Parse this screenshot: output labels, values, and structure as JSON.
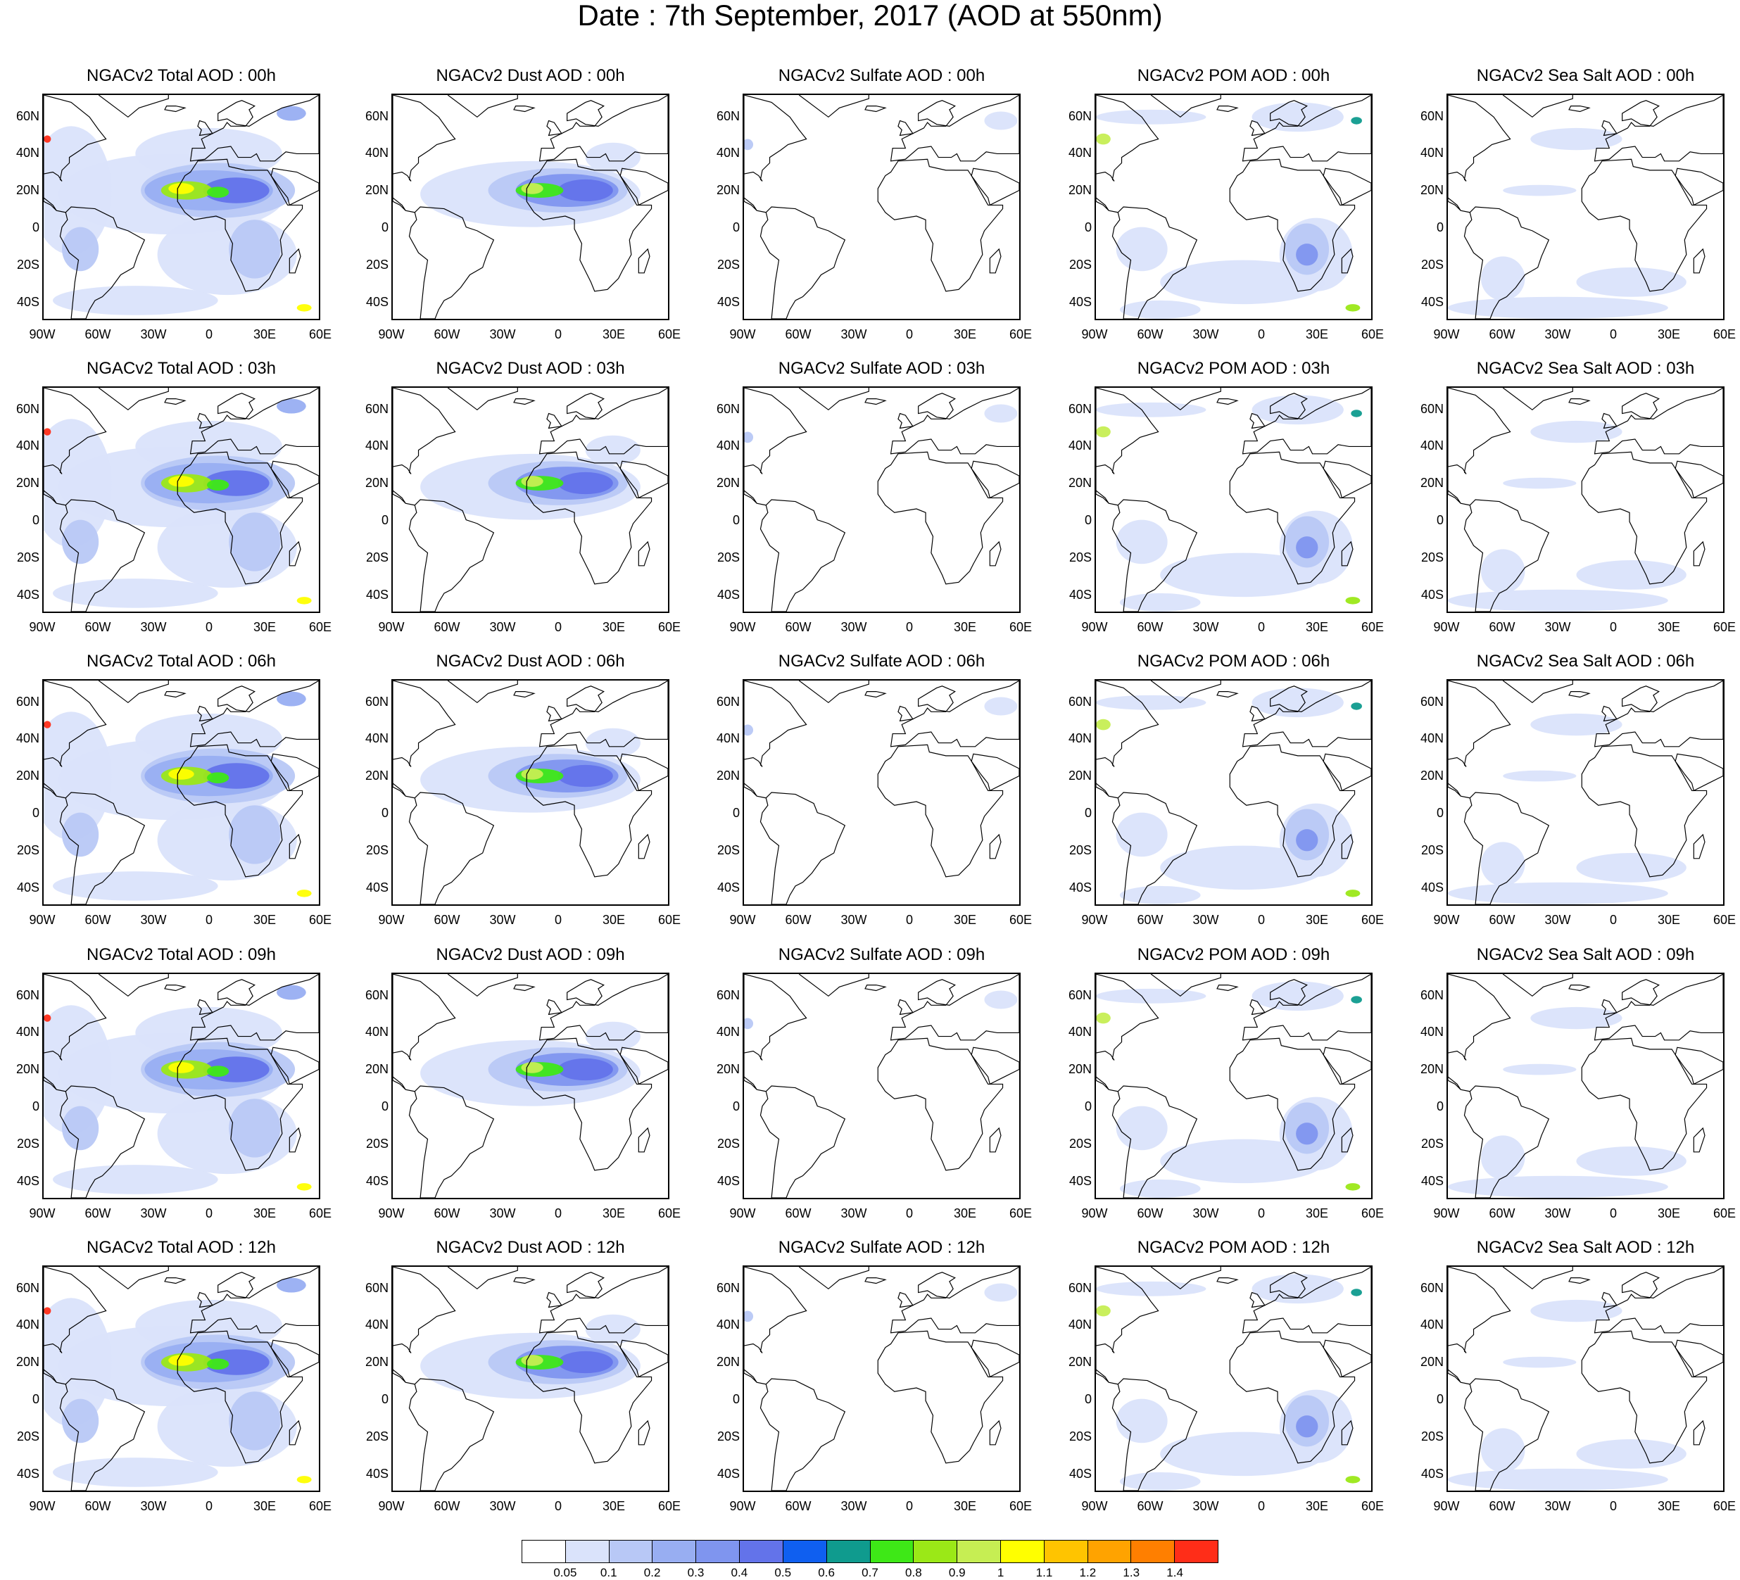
{
  "title": "Date : 7th September, 2017 (AOD at 550nm)",
  "lat_labels": [
    "60N",
    "40N",
    "20N",
    "0",
    "20S",
    "40S"
  ],
  "lat_values": [
    60,
    40,
    20,
    0,
    -20,
    -40
  ],
  "lon_labels": [
    "90W",
    "60W",
    "30W",
    "0",
    "30E",
    "60E"
  ],
  "lon_values": [
    -90,
    -60,
    -30,
    0,
    30,
    60
  ],
  "map_extent": {
    "lon": [
      -90,
      60
    ],
    "lat": [
      -50,
      72
    ]
  },
  "panels": [
    [
      "NGACv2 Total AOD : 00h",
      "NGACv2 Dust AOD : 00h",
      "NGACv2 Sulfate AOD : 00h",
      "NGACv2 POM AOD : 00h",
      "NGACv2 Sea Salt AOD : 00h"
    ],
    [
      "NGACv2 Total AOD : 03h",
      "NGACv2 Dust AOD : 03h",
      "NGACv2 Sulfate AOD : 03h",
      "NGACv2 POM AOD : 03h",
      "NGACv2 Sea Salt AOD : 03h"
    ],
    [
      "NGACv2 Total AOD : 06h",
      "NGACv2 Dust AOD : 06h",
      "NGACv2 Sulfate AOD : 06h",
      "NGACv2 POM AOD : 06h",
      "NGACv2 Sea Salt AOD : 06h"
    ],
    [
      "NGACv2 Total AOD : 09h",
      "NGACv2 Dust AOD : 09h",
      "NGACv2 Sulfate AOD : 09h",
      "NGACv2 POM AOD : 09h",
      "NGACv2 Sea Salt  AOD : 09h"
    ],
    [
      "NGACv2 Total AOD  : 12h",
      "NGACv2 Dust AOD : 12h",
      "NGACv2 Sulfate AOD : 12h",
      "NGACv2 POM  AOD : 12h",
      "NGACv2 Sea Salt  AOD : 12h"
    ]
  ],
  "colorbar": {
    "labels": [
      "0.05",
      "0.1",
      "0.2",
      "0.3",
      "0.4",
      "0.5",
      "0.6",
      "0.7",
      "0.8",
      "0.9",
      "1",
      "1.1",
      "1.2",
      "1.3",
      "1.4"
    ],
    "colors": [
      "#ffffff",
      "#dae3fb",
      "#b8c8f6",
      "#98aef2",
      "#7f95ef",
      "#6373ea",
      "#0f5ff0",
      "#0f9b8e",
      "#3ee817",
      "#9be817",
      "#c6ee53",
      "#ffff00",
      "#ffc400",
      "#ffa300",
      "#ff7f00",
      "#ff2d18"
    ]
  },
  "colors": {
    "land_outline": "#000000",
    "background": "#ffffff"
  }
}
